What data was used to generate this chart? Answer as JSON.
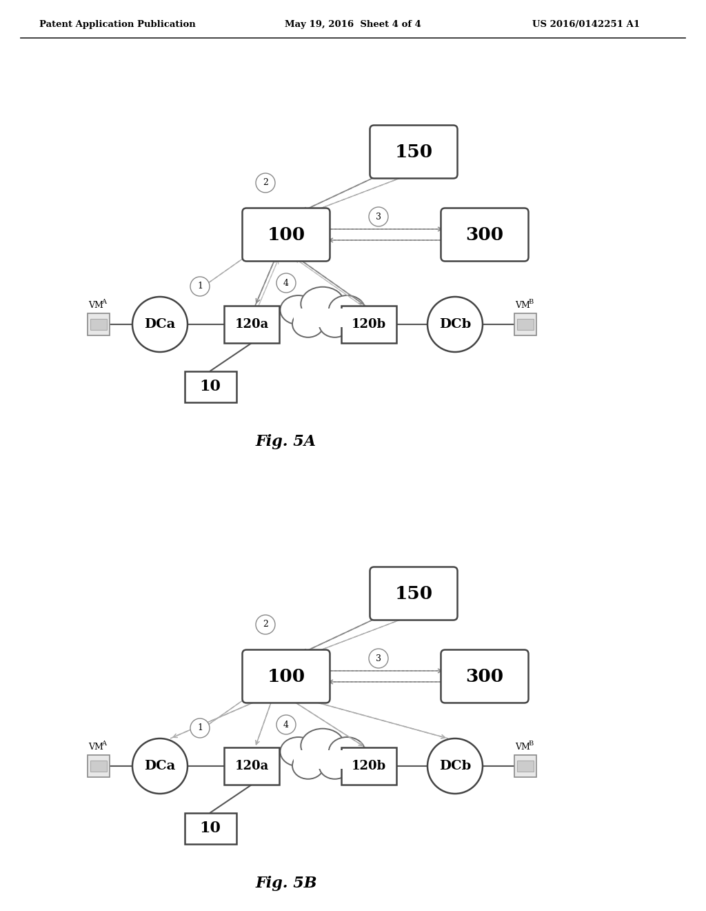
{
  "header_left": "Patent Application Publication",
  "header_mid": "May 19, 2016  Sheet 4 of 4",
  "header_right": "US 2016/0142251 A1",
  "fig5a_label": "Fig. 5A",
  "fig5b_label": "Fig. 5B",
  "background_color": "#ffffff",
  "box_edgecolor": "#444444",
  "box_facecolor": "#ffffff",
  "text_color": "#000000",
  "line_color": "#666666",
  "arrow_color": "#777777"
}
